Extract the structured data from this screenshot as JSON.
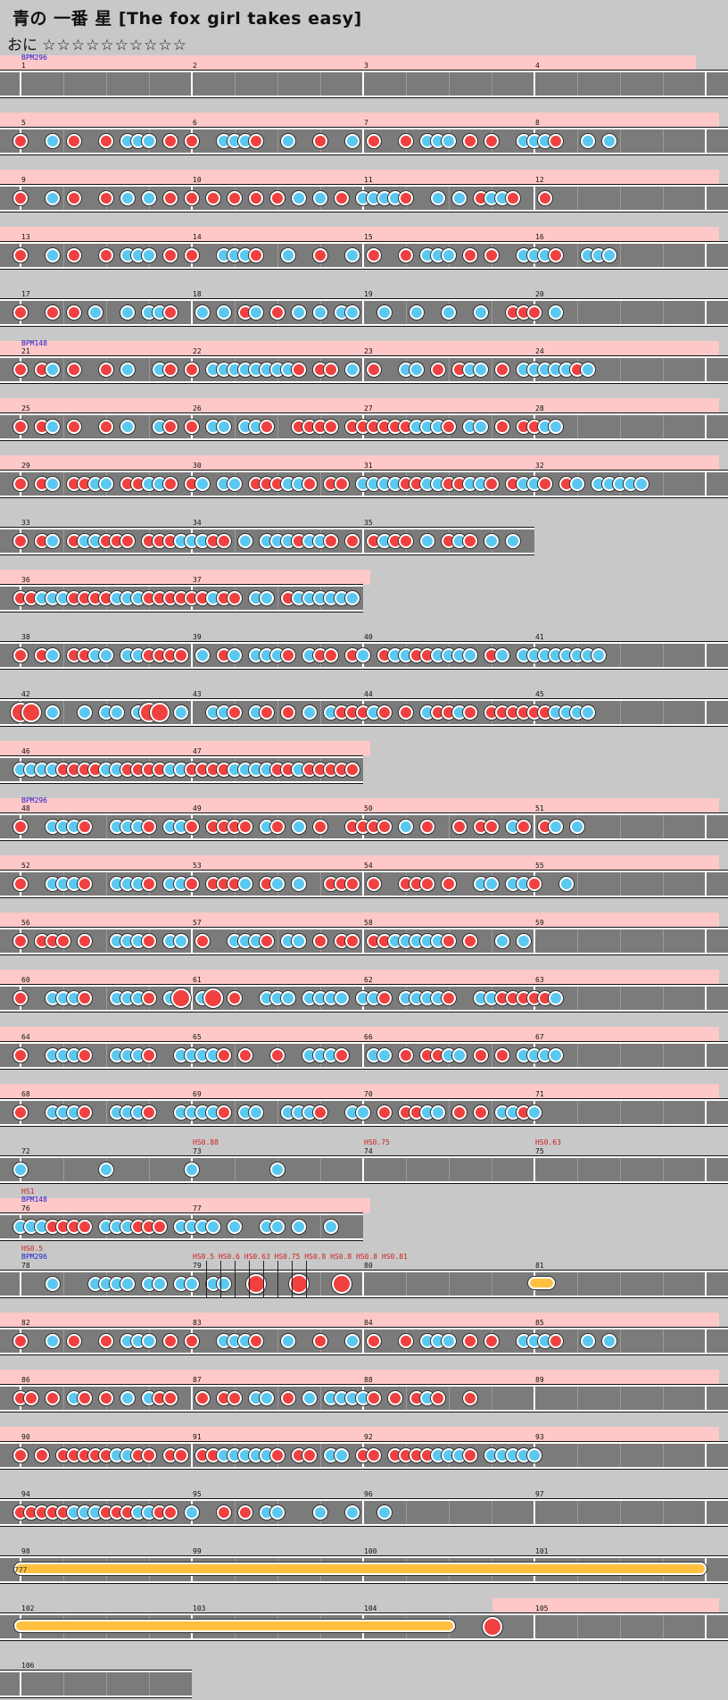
{
  "title": "青の 一番 星 [The fox girl takes easy]",
  "difficulty": {
    "label": "おに",
    "stars": "☆☆☆☆☆☆☆☆☆☆"
  },
  "colors": {
    "don": "#f04040",
    "ka": "#5ac8f0",
    "roll": "#ffc040",
    "gogo": "#ffc8c8",
    "lane": "#7b7b7b"
  },
  "annotations": {
    "bpm296": "BPM296",
    "bpm148": "BPM148",
    "hs08": "HS0.88",
    "hs075": "HS0.75",
    "hs063": "HS0.63",
    "hs1": "HS1",
    "hs05": "HS0.5",
    "hs_seq": "HS0.5 HS0.6 HS0.63 HS0.75 HS0.8 HS0.8 HS0.8 HS0.81",
    "roll_label": "777"
  },
  "rows": [
    {
      "measures": [
        "1",
        "2",
        "3",
        "4"
      ]
    },
    {
      "measures": [
        "5",
        "6",
        "7",
        "8"
      ]
    },
    {
      "measures": [
        "9",
        "10",
        "11",
        "12"
      ]
    },
    {
      "measures": [
        "13",
        "14",
        "15",
        "16"
      ]
    },
    {
      "measures": [
        "17",
        "18",
        "19",
        "20"
      ]
    },
    {
      "measures": [
        "21",
        "22",
        "23",
        "24"
      ]
    },
    {
      "measures": [
        "25",
        "26",
        "27",
        "28"
      ]
    },
    {
      "measures": [
        "29",
        "30",
        "31",
        "32"
      ]
    },
    {
      "measures": [
        "33",
        "34",
        "35"
      ]
    },
    {
      "measures": [
        "36",
        "37"
      ]
    },
    {
      "measures": [
        "38",
        "39",
        "40",
        "41"
      ]
    },
    {
      "measures": [
        "42",
        "43",
        "44",
        "45"
      ]
    },
    {
      "measures": [
        "46",
        "47"
      ]
    },
    {
      "measures": [
        "48",
        "49",
        "50",
        "51"
      ]
    },
    {
      "measures": [
        "52",
        "53",
        "54",
        "55"
      ]
    },
    {
      "measures": [
        "56",
        "57",
        "58",
        "59"
      ]
    },
    {
      "measures": [
        "60",
        "61",
        "62",
        "63"
      ]
    },
    {
      "measures": [
        "64",
        "65",
        "66",
        "67"
      ]
    },
    {
      "measures": [
        "68",
        "69",
        "70",
        "71"
      ]
    },
    {
      "measures": [
        "72",
        "73",
        "74",
        "75"
      ]
    },
    {
      "measures": [
        "76",
        "77"
      ]
    },
    {
      "measures": [
        "78",
        "79",
        "80",
        "81"
      ]
    },
    {
      "measures": [
        "82",
        "83",
        "84",
        "85"
      ]
    },
    {
      "measures": [
        "86",
        "87",
        "88",
        "89"
      ]
    },
    {
      "measures": [
        "90",
        "91",
        "92",
        "93"
      ]
    },
    {
      "measures": [
        "94",
        "95",
        "96",
        "97"
      ]
    },
    {
      "measures": [
        "98",
        "99",
        "100",
        "101"
      ]
    },
    {
      "measures": [
        "102",
        "103",
        "104",
        "105"
      ]
    },
    {
      "measures": [
        "106"
      ]
    }
  ]
}
